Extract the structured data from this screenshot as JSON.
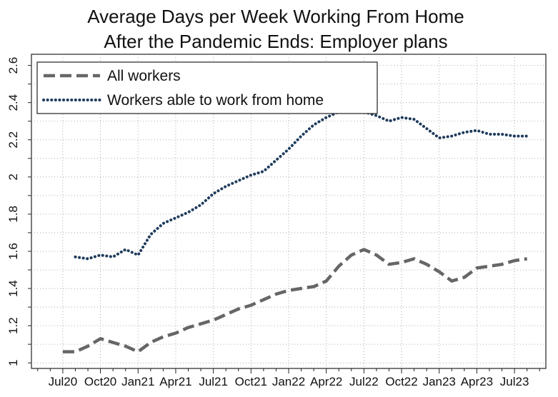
{
  "chart_data": {
    "type": "line",
    "title": [
      "Average Days per Week Working From Home",
      "After the Pandemic Ends: Employer plans"
    ],
    "xlabel": "",
    "ylabel": "",
    "ylim": [
      0.97,
      2.66
    ],
    "y_ticks": [
      1,
      1.2,
      1.4,
      1.6,
      1.8,
      2,
      2.2,
      2.4,
      2.6
    ],
    "y_tick_labels": [
      "1",
      "1.2",
      "1.4",
      "1.6",
      "1.8",
      "2",
      "2.2",
      "2.4",
      "2.6"
    ],
    "x_range": [
      "2020-05",
      "2023-09"
    ],
    "x_ticks": [
      {
        "date": "2020-07",
        "label": "Jul20"
      },
      {
        "date": "2020-10",
        "label": "Oct20"
      },
      {
        "date": "2021-01",
        "label": "Jan21"
      },
      {
        "date": "2021-04",
        "label": "Apr21"
      },
      {
        "date": "2021-07",
        "label": "Jul21"
      },
      {
        "date": "2021-10",
        "label": "Oct21"
      },
      {
        "date": "2022-01",
        "label": "Jan22"
      },
      {
        "date": "2022-04",
        "label": "Apr22"
      },
      {
        "date": "2022-07",
        "label": "Jul22"
      },
      {
        "date": "2022-10",
        "label": "Oct22"
      },
      {
        "date": "2023-01",
        "label": "Jan23"
      },
      {
        "date": "2023-04",
        "label": "Apr23"
      },
      {
        "date": "2023-07",
        "label": "Jul23"
      }
    ],
    "grid": true,
    "legend_position": "top-left",
    "series": [
      {
        "name": "All workers",
        "color": "#666666",
        "style": "dashed",
        "x": [
          "2020-07",
          "2020-08",
          "2020-09",
          "2020-10",
          "2020-11",
          "2020-12",
          "2021-01",
          "2021-02",
          "2021-03",
          "2021-04",
          "2021-05",
          "2021-06",
          "2021-07",
          "2021-08",
          "2021-09",
          "2021-10",
          "2021-11",
          "2021-12",
          "2022-01",
          "2022-02",
          "2022-03",
          "2022-04",
          "2022-05",
          "2022-06",
          "2022-07",
          "2022-08",
          "2022-09",
          "2022-10",
          "2022-11",
          "2022-12",
          "2023-01",
          "2023-02",
          "2023-03",
          "2023-04",
          "2023-05",
          "2023-06",
          "2023-07",
          "2023-08"
        ],
        "values": [
          1.06,
          1.06,
          1.09,
          1.13,
          1.11,
          1.09,
          1.06,
          1.11,
          1.14,
          1.16,
          1.19,
          1.21,
          1.23,
          1.26,
          1.29,
          1.31,
          1.34,
          1.37,
          1.39,
          1.4,
          1.41,
          1.44,
          1.52,
          1.58,
          1.61,
          1.58,
          1.53,
          1.54,
          1.56,
          1.53,
          1.49,
          1.44,
          1.46,
          1.51,
          1.52,
          1.53,
          1.55,
          1.56
        ]
      },
      {
        "name": "Workers able to work from home",
        "color": "#1f3b5c",
        "style": "dotted",
        "x": [
          "2020-08",
          "2020-09",
          "2020-10",
          "2020-11",
          "2020-12",
          "2021-01",
          "2021-02",
          "2021-03",
          "2021-04",
          "2021-05",
          "2021-06",
          "2021-07",
          "2021-08",
          "2021-09",
          "2021-10",
          "2021-11",
          "2021-12",
          "2022-01",
          "2022-02",
          "2022-03",
          "2022-04",
          "2022-05",
          "2022-06",
          "2022-07",
          "2022-08",
          "2022-09",
          "2022-10",
          "2022-11",
          "2022-12",
          "2023-01",
          "2023-02",
          "2023-03",
          "2023-04",
          "2023-05",
          "2023-06",
          "2023-07",
          "2023-08"
        ],
        "values": [
          1.57,
          1.56,
          1.58,
          1.57,
          1.61,
          1.58,
          1.69,
          1.75,
          1.78,
          1.81,
          1.85,
          1.91,
          1.95,
          1.98,
          2.01,
          2.03,
          2.09,
          2.15,
          2.22,
          2.28,
          2.32,
          2.35,
          2.36,
          2.35,
          2.33,
          2.3,
          2.32,
          2.31,
          2.26,
          2.21,
          2.22,
          2.24,
          2.25,
          2.23,
          2.23,
          2.22,
          2.22
        ]
      }
    ]
  }
}
